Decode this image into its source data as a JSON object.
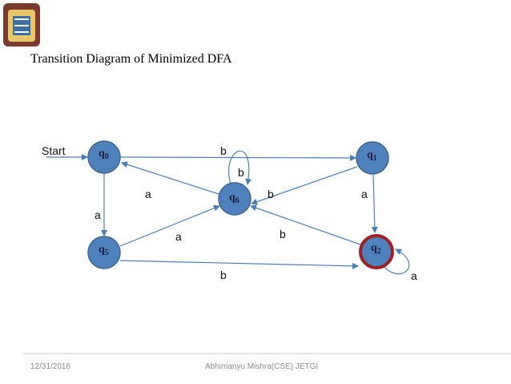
{
  "title": "Transition Diagram of Minimized  DFA",
  "start_label": "Start",
  "nodes": [
    {
      "label": "q",
      "sub": "0"
    },
    {
      "label": "q",
      "sub": "1"
    },
    {
      "label": "q",
      "sub": "6"
    },
    {
      "label": "q",
      "sub": "5"
    },
    {
      "label": "q",
      "sub": "2"
    }
  ],
  "edges": [
    {
      "label": "b"
    },
    {
      "label": "b"
    },
    {
      "label": "a"
    },
    {
      "label": "b"
    },
    {
      "label": "a"
    },
    {
      "label": "a"
    },
    {
      "label": "a"
    },
    {
      "label": "b"
    },
    {
      "label": "b"
    },
    {
      "label": "a"
    }
  ],
  "footer": {
    "date": "12/31/2016",
    "author": "Abhimanyu Mishra(CSE) JETGI"
  }
}
